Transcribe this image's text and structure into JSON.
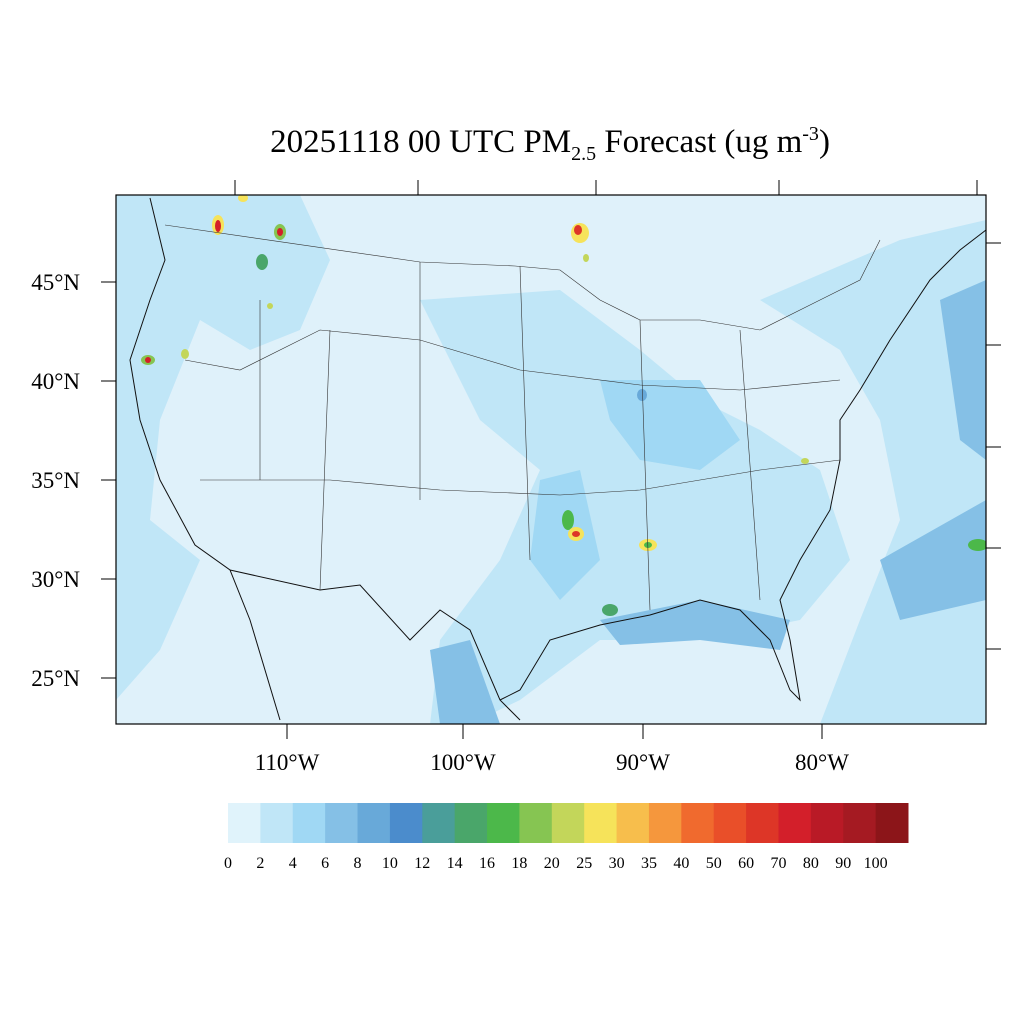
{
  "title": {
    "main": "20251118 00 UTC PM",
    "sub": "2.5",
    "middle": " Forecast (ug m",
    "sup": "-3",
    "end": ")"
  },
  "lat_labels": [
    "45°N",
    "40°N",
    "35°N",
    "30°N",
    "25°N"
  ],
  "lon_labels": [
    "110°W",
    "100°W",
    "90°W",
    "80°W"
  ],
  "colorbar": {
    "levels": [
      0,
      2,
      4,
      6,
      8,
      10,
      12,
      14,
      16,
      18,
      20,
      25,
      30,
      35,
      40,
      50,
      60,
      70,
      80,
      90,
      100
    ],
    "colors": [
      "#e0f3fb",
      "#c0e6f7",
      "#a0d8f4",
      "#85c0e6",
      "#68a9d9",
      "#4b8ccc",
      "#4a9e9a",
      "#4aa66a",
      "#4cb84a",
      "#86c552",
      "#c3d65a",
      "#f6e35a",
      "#f7be4c",
      "#f5973d",
      "#f06a2e",
      "#e94f29",
      "#dd3627",
      "#d31f2a",
      "#b91a26",
      "#a51a22",
      "#8c1519"
    ]
  }
}
